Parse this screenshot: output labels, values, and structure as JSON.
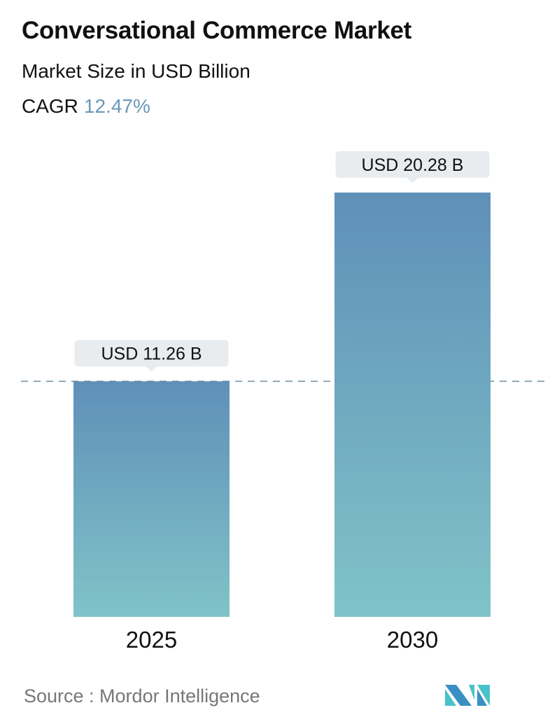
{
  "header": {
    "title": "Conversational Commerce Market",
    "subtitle": "Market Size in USD Billion",
    "cagr_label": "CAGR",
    "cagr_value": "12.47%"
  },
  "chart_data": {
    "type": "bar",
    "categories": [
      "2025",
      "2030"
    ],
    "values": [
      11.26,
      20.28
    ],
    "data_labels": [
      "USD 11.26 B",
      "USD 20.28 B"
    ],
    "ylim": [
      0,
      20.28
    ],
    "grid": false,
    "reference_line": {
      "value": 11.26,
      "style": "dashed"
    },
    "colors": {
      "bar_top": "#5f90b8",
      "bar_bottom": "#7fc2c8",
      "callout": "#e8ecee",
      "dash": "#6a8aa0",
      "cagr": "#6a98b8"
    }
  },
  "footer": {
    "source": "Source :  Mordor Intelligence",
    "logo_text": "Mordor Intelligence"
  }
}
